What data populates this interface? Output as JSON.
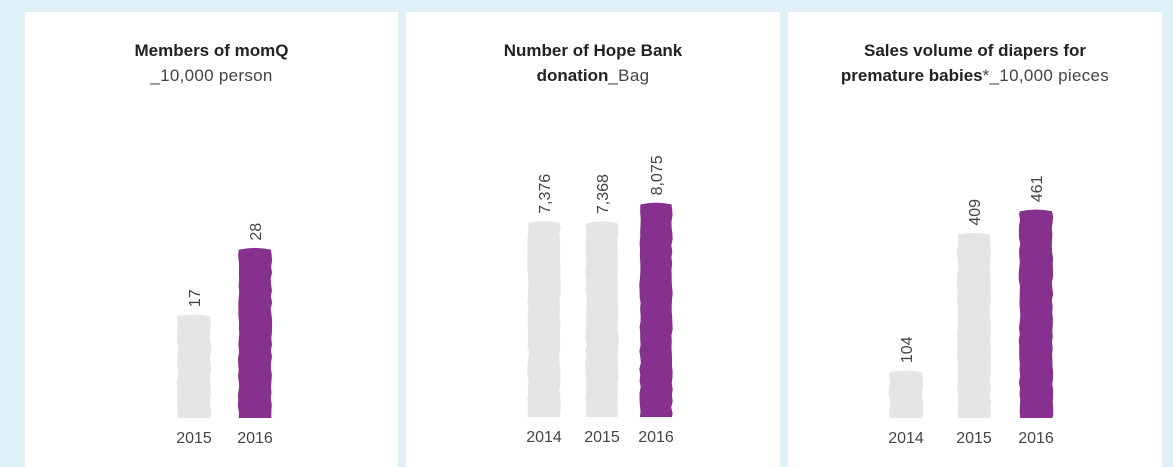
{
  "colors": {
    "highlight": "#86318d",
    "base": "#e4e5e6",
    "background": "#dff0f7"
  },
  "chart_data": [
    {
      "type": "bar",
      "title": "Members of momQ",
      "unit": "_10,000 person",
      "categories": [
        "2015",
        "2016"
      ],
      "values": [
        17,
        28
      ],
      "value_labels": [
        "17",
        "28"
      ]
    },
    {
      "type": "bar",
      "title_line1": "Number of Hope Bank",
      "title_line2_bold": "donation",
      "unit": "_Bag",
      "categories": [
        "2014",
        "2015",
        "2016"
      ],
      "values": [
        7376,
        7368,
        8075
      ],
      "value_labels": [
        "7,376",
        "7,368",
        "8,075"
      ]
    },
    {
      "type": "bar",
      "title_line1": "Sales volume of diapers for",
      "title_line2_bold": "premature babies",
      "unit": "*_10,000 pieces",
      "categories": [
        "2014",
        "2015",
        "2016"
      ],
      "values": [
        104,
        409,
        461
      ],
      "value_labels": [
        "104",
        "409",
        "461"
      ]
    }
  ]
}
